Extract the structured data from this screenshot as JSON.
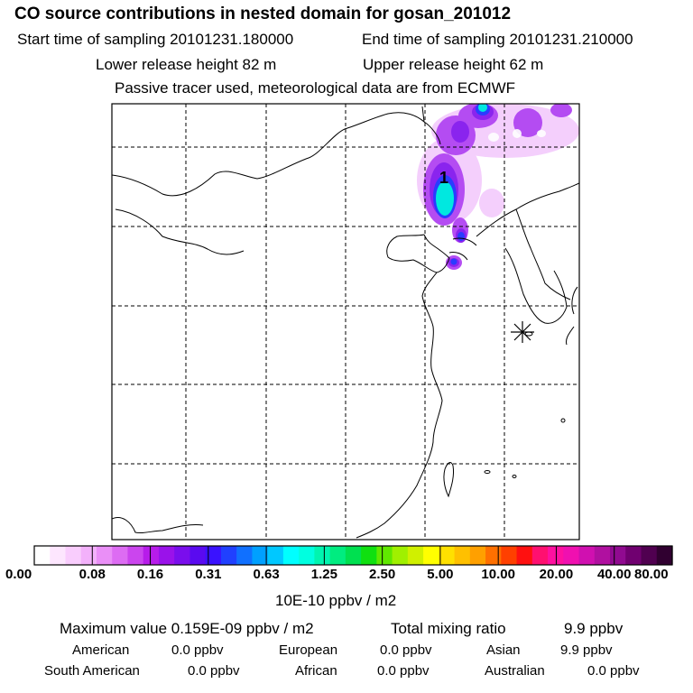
{
  "title": "CO  source contributions in nested domain for gosan_201012",
  "start_label": "Start time of sampling 20101231.180000",
  "end_label": "End time of sampling 20101231.210000",
  "lower_label": "Lower release height   82 m",
  "upper_label": "Upper release height   62 m",
  "tracer_note": "Passive tracer used, meteorological data are from ECMWF",
  "receptor_marker": "1",
  "colorbar": {
    "colors": [
      "#ffffff",
      "#fde6fe",
      "#f9cdfd",
      "#f3b1fb",
      "#ea8ff7",
      "#dd6cf3",
      "#cb45ee",
      "#b71cea",
      "#9a12ea",
      "#7a0eed",
      "#5a0af0",
      "#3a12ff",
      "#2040ff",
      "#1070ff",
      "#00a0ff",
      "#00c8ff",
      "#00ffff",
      "#00ffe0",
      "#00f5b0",
      "#00ec80",
      "#00e050",
      "#10e010",
      "#60e800",
      "#a0f000",
      "#d0f000",
      "#ffff00",
      "#ffe000",
      "#ffc000",
      "#ffa000",
      "#ff7000",
      "#ff4000",
      "#ff1010",
      "#ff1070",
      "#ff10a0",
      "#f010b0",
      "#d010b0",
      "#b010a0",
      "#900a90",
      "#700070",
      "#500050",
      "#300030"
    ],
    "labels": [
      "0.00",
      "0.08",
      "0.16",
      "0.31",
      "0.63",
      "1.25",
      "2.50",
      "5.00",
      "10.00",
      "20.00",
      "40.00",
      "80.00"
    ],
    "unit": "10E-10 ppbv / m2"
  },
  "summary": {
    "max_label": "Maximum value  0.159E-09 ppbv / m2",
    "total_label": "Total mixing ratio",
    "total_value": "9.9 ppbv"
  },
  "regions": [
    {
      "name": "American",
      "value": "0.0 ppbv"
    },
    {
      "name": "European",
      "value": "0.0 ppbv"
    },
    {
      "name": "Asian",
      "value": "9.9 ppbv"
    },
    {
      "name": "South American",
      "value": "0.0 ppbv"
    },
    {
      "name": "African",
      "value": "0.0 ppbv"
    },
    {
      "name": "Australian",
      "value": "0.0 ppbv"
    }
  ],
  "colors": {
    "plume_purple": "#a23cf0",
    "plume_light": "#e8a8f8",
    "plume_blue": "#2a3cff",
    "plume_cyan": "#00e8e0"
  }
}
